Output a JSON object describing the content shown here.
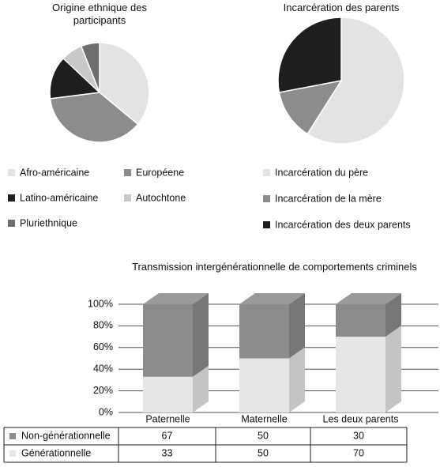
{
  "chart_data": [
    {
      "type": "pie",
      "title": "Origine ethnique des participants",
      "categories": [
        "Afro-américaine",
        "Européene",
        "Latino-américaine",
        "Autochtone",
        "Pluriethnique"
      ],
      "values": [
        36,
        37,
        14,
        7,
        6
      ],
      "colors": [
        "#e3e3e3",
        "#8c8c8c",
        "#1e1e1e",
        "#c8c8c8",
        "#6e6e6e"
      ]
    },
    {
      "type": "pie",
      "title": "Incarcération des parents",
      "categories": [
        "Incarcération du père",
        "Incarcération de la mère",
        "Incarcération des deux parents"
      ],
      "values": [
        59,
        13,
        28
      ],
      "colors": [
        "#e3e3e3",
        "#8c8c8c",
        "#1e1e1e"
      ]
    },
    {
      "type": "bar",
      "stacked": true,
      "title": "Transmission intergénérationnelle de comportements criminels",
      "categories": [
        "Paternelle",
        "Maternelle",
        "Les deux parents"
      ],
      "series": [
        {
          "name": "Non-générationnelle",
          "color": "#8c8c8c",
          "values": [
            67,
            50,
            30
          ]
        },
        {
          "name": "Générationnelle",
          "color": "#e6e6e6",
          "values": [
            33,
            50,
            70
          ]
        }
      ],
      "ylim": [
        0,
        100
      ],
      "yticks": [
        {
          "value": 0,
          "label": "0%"
        },
        {
          "value": 20,
          "label": "20%"
        },
        {
          "value": 40,
          "label": "40%"
        },
        {
          "value": 60,
          "label": "60%"
        },
        {
          "value": 80,
          "label": "80%"
        },
        {
          "value": 100,
          "label": "100%"
        }
      ],
      "grid": true
    }
  ]
}
